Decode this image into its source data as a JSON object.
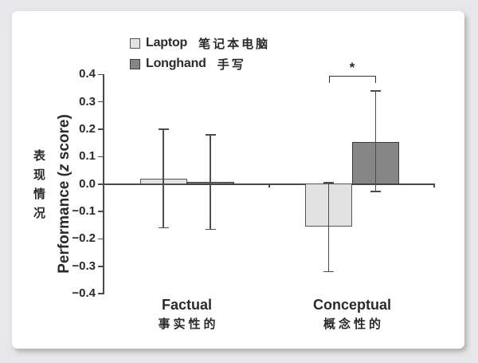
{
  "chart_data": {
    "type": "bar",
    "categories": [
      "Factual",
      "Conceptual"
    ],
    "categories_zh": [
      "事实性的",
      "概念性的"
    ],
    "series": [
      {
        "name": "Laptop",
        "name_zh": "笔记本电脑",
        "color": "#e2e2e2",
        "border": "#555555",
        "values": [
          0.021,
          -0.156
        ],
        "ci_high": [
          0.2,
          0.005
        ],
        "ci_low": [
          -0.16,
          -0.32
        ]
      },
      {
        "name": "Longhand",
        "name_zh": "手写",
        "color": "#868686",
        "border": "#3d3d3d",
        "values": [
          0.009,
          0.154
        ],
        "ci_high": [
          0.18,
          0.34
        ],
        "ci_low": [
          -0.165,
          -0.027
        ]
      }
    ],
    "ylabel": "Performance (z score)",
    "ylabel_parts": {
      "pre": "Performance (",
      "z": "z",
      "post": " score)"
    },
    "ylabel_zh": "表现情况",
    "yticks": [
      0.4,
      0.3,
      0.2,
      0.1,
      0.0,
      -0.1,
      -0.2,
      -0.3,
      -0.4
    ],
    "ylim": [
      -0.4,
      0.4
    ],
    "grid": false,
    "legend_position": "top-left",
    "significance": {
      "category_index": 1,
      "category": "Conceptual",
      "marker": "*"
    }
  },
  "colors": {
    "page_bg": "#e7e7e9",
    "card_bg": "#ffffff",
    "axis": "#4a4a4a",
    "error_bar": "#4d4d4d",
    "text": "#2a2a2a"
  }
}
